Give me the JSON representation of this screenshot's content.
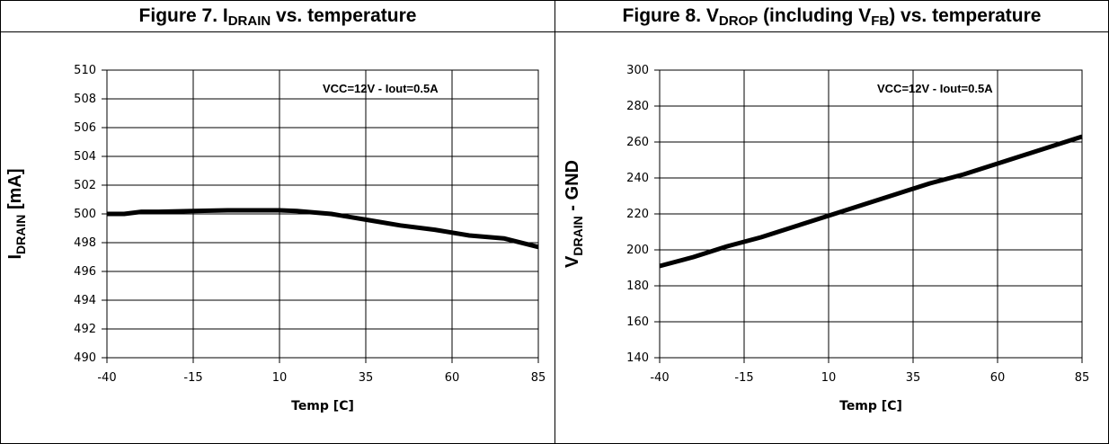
{
  "chart_data": [
    {
      "type": "line",
      "title": "Figure 7. IDRAIN vs. temperature",
      "title_parts": {
        "prefix": "Figure 7. I",
        "sub": "DRAIN",
        "suffix": " vs. temperature"
      },
      "xlabel": "Temp [C]",
      "ylabel_parts": {
        "prefix": "I",
        "sub": "DRAIN",
        "suffix": " [mA]"
      },
      "annotation": "VCC=12V - Iout=0.5A",
      "xlim": [
        -40,
        85
      ],
      "ylim": [
        490,
        510
      ],
      "x_ticks": [
        -40,
        -15,
        10,
        35,
        60,
        85
      ],
      "y_ticks": [
        490,
        492,
        494,
        496,
        498,
        500,
        502,
        504,
        506,
        508,
        510
      ],
      "grid": true,
      "series": [
        {
          "x": [
            -40,
            -35,
            -30,
            -25,
            -15,
            -5,
            0,
            10,
            15,
            20,
            25,
            30,
            35,
            45,
            55,
            60,
            65,
            75,
            85
          ],
          "values": [
            500.0,
            500.0,
            500.15,
            500.15,
            500.2,
            500.25,
            500.25,
            500.25,
            500.2,
            500.1,
            500.0,
            499.8,
            499.6,
            499.2,
            498.9,
            498.7,
            498.5,
            498.3,
            497.7
          ]
        }
      ]
    },
    {
      "type": "line",
      "title": "Figure 8. VDROP (including VFB) vs. temperature",
      "title_parts": {
        "prefix": "Figure 8. V",
        "sub": "DROP",
        "mid": " (including V",
        "sub2": "FB",
        "suffix": ") vs. temperature"
      },
      "xlabel": "Temp [C]",
      "ylabel_parts": {
        "prefix": "V",
        "sub": "DRAIN",
        "suffix": " - GND"
      },
      "annotation": "VCC=12V - Iout=0.5A",
      "xlim": [
        -40,
        85
      ],
      "ylim": [
        140,
        300
      ],
      "x_ticks": [
        -40,
        -15,
        10,
        35,
        60,
        85
      ],
      "y_ticks": [
        140,
        160,
        180,
        200,
        220,
        240,
        260,
        280,
        300
      ],
      "grid": true,
      "series": [
        {
          "x": [
            -40,
            -30,
            -20,
            -10,
            0,
            10,
            20,
            30,
            40,
            50,
            60,
            70,
            85
          ],
          "values": [
            191,
            196,
            202,
            207,
            213,
            219,
            225,
            231,
            237,
            242,
            248,
            254,
            263
          ]
        }
      ]
    }
  ]
}
